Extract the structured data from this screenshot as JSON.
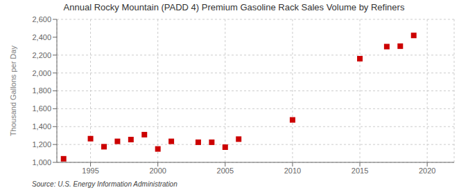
{
  "chart_data": {
    "type": "scatter",
    "title": "Annual Rocky Mountain (PADD 4) Premium Gasoline Rack Sales Volume by Refiners",
    "ylabel": "Thousand Gallons per Day",
    "annotations": [
      "Source: U.S. Energy Information Administration"
    ],
    "x": [
      1993,
      1995,
      1996,
      1997,
      1998,
      1999,
      2000,
      2001,
      2003,
      2004,
      2005,
      2006,
      2010,
      2015,
      2017,
      2018,
      2019
    ],
    "values": [
      1040,
      1265,
      1175,
      1235,
      1255,
      1310,
      1150,
      1235,
      1225,
      1225,
      1170,
      1260,
      1475,
      2160,
      2295,
      2300,
      2420
    ],
    "color": "#cc0000",
    "marker": "square",
    "xlim": [
      1992.5,
      2022
    ],
    "xticks": [
      1995,
      2000,
      2005,
      2010,
      2015,
      2020
    ],
    "ylim": [
      1000,
      2600
    ],
    "yticks": [
      {
        "value": 1000,
        "label": "1,000"
      },
      {
        "value": 1200,
        "label": "1,200"
      },
      {
        "value": 1400,
        "label": "1,400"
      },
      {
        "value": 1600,
        "label": "1,600"
      },
      {
        "value": 1800,
        "label": "1,800"
      },
      {
        "value": 2000,
        "label": "2,000"
      },
      {
        "value": 2200,
        "label": "2,200"
      },
      {
        "value": 2400,
        "label": "2,400"
      },
      {
        "value": 2600,
        "label": "2,600"
      }
    ],
    "grid": true
  }
}
